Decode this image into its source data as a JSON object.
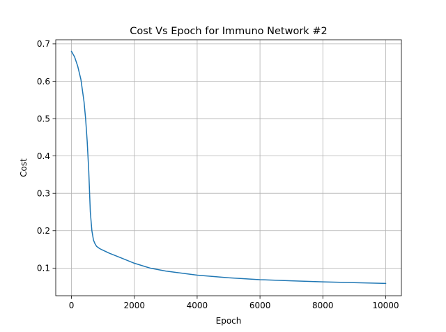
{
  "chart_data": {
    "type": "line",
    "title": "Cost Vs Epoch for Immuno Network #2",
    "xlabel": "Epoch",
    "ylabel": "Cost",
    "xlim": [
      -500,
      10500
    ],
    "ylim": [
      0.026,
      0.711
    ],
    "xticks": [
      0,
      2000,
      4000,
      6000,
      8000,
      10000
    ],
    "xtick_labels": [
      "0",
      "2000",
      "4000",
      "6000",
      "8000",
      "10000"
    ],
    "yticks": [
      0.1,
      0.2,
      0.3,
      0.4,
      0.5,
      0.6,
      0.7
    ],
    "ytick_labels": [
      "0.1",
      "0.2",
      "0.3",
      "0.4",
      "0.5",
      "0.6",
      "0.7"
    ],
    "grid": true,
    "series": [
      {
        "color": "#1f77b4",
        "x": [
          0,
          100,
          200,
          300,
          400,
          450,
          500,
          550,
          600,
          650,
          700,
          750,
          800,
          900,
          1000,
          1200,
          1500,
          2000,
          2500,
          3000,
          4000,
          5000,
          6000,
          7000,
          8000,
          9000,
          10000
        ],
        "y": [
          0.68,
          0.665,
          0.64,
          0.605,
          0.545,
          0.5,
          0.44,
          0.36,
          0.25,
          0.2,
          0.175,
          0.165,
          0.158,
          0.152,
          0.148,
          0.14,
          0.13,
          0.113,
          0.1,
          0.092,
          0.081,
          0.074,
          0.069,
          0.066,
          0.063,
          0.061,
          0.059
        ]
      }
    ]
  }
}
